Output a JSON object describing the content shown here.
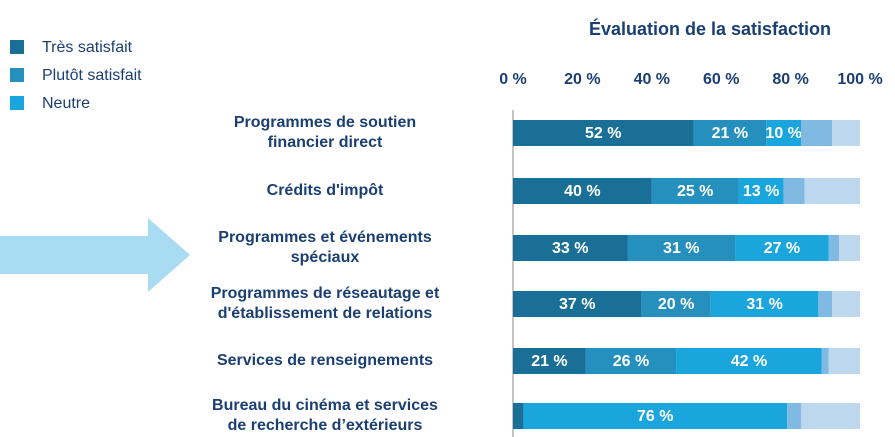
{
  "chart_data": {
    "type": "stacked-barh",
    "title": "Évaluation de la satisfaction",
    "categories": [
      "Programmes de soutien\nfinancier direct",
      "Crédits d'impôt",
      "Programmes et événements\nspéciaux",
      "Programmes de réseautage et\nd'établissement de relations",
      "Services de renseignements",
      "Bureau du cinéma et services\nde recherche d’extérieurs"
    ],
    "series": [
      {
        "name": "Très satisfait",
        "color": "#1a6f97",
        "values": [
          52,
          40,
          33,
          37,
          21,
          3
        ],
        "value_labels": [
          "52 %",
          "40 %",
          "33 %",
          "37 %",
          "21 %",
          null
        ]
      },
      {
        "name": "Plutôt satisfait",
        "color": "#2590be",
        "values": [
          21,
          25,
          31,
          20,
          26,
          0
        ],
        "value_labels": [
          "21 %",
          "25 %",
          "31 %",
          "20 %",
          "26 %",
          null
        ]
      },
      {
        "name": "Neutre",
        "color": "#1aa5dc",
        "values": [
          10,
          13,
          27,
          31,
          42,
          76
        ],
        "value_labels": [
          "10 %",
          "13 %",
          "27 %",
          "31 %",
          "42 %",
          "76 %"
        ]
      },
      {
        "color": "#80bae2",
        "values": [
          9,
          6,
          3,
          4,
          2,
          4
        ]
      },
      {
        "color": "#bdd7ef",
        "values": [
          8,
          16,
          6,
          8,
          9,
          17
        ]
      }
    ],
    "xlim": [
      0,
      100
    ],
    "xticks": [
      {
        "value": 0,
        "label": "0 %"
      },
      {
        "value": 20,
        "label": "20 %"
      },
      {
        "value": 40,
        "label": "40 %"
      },
      {
        "value": 60,
        "label": "60 %"
      },
      {
        "value": 80,
        "label": "80 %"
      },
      {
        "value": 100,
        "label": "100 %"
      }
    ],
    "legend": "top-left"
  }
}
